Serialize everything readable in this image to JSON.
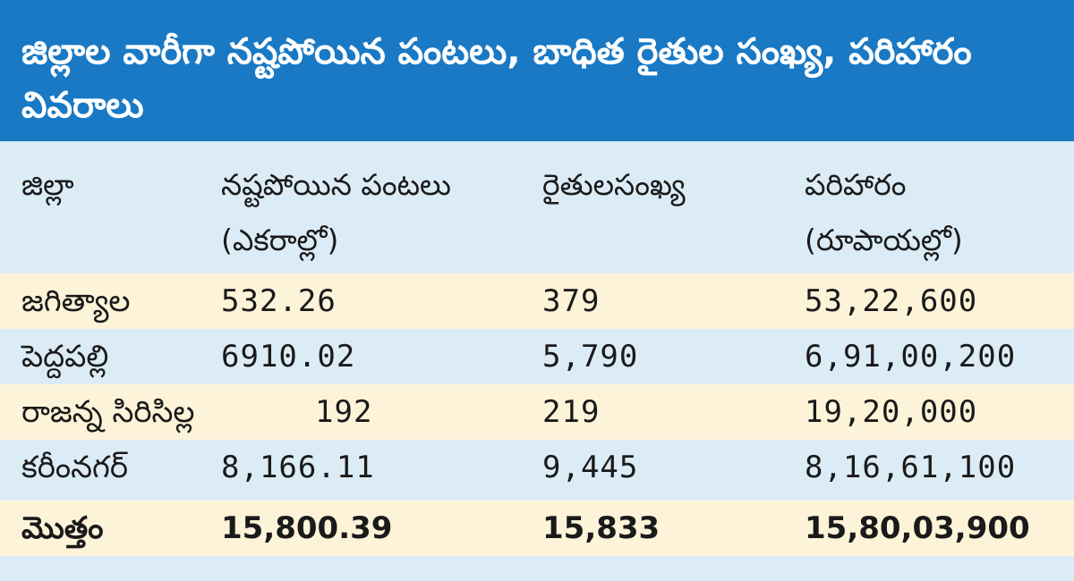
{
  "title": "జిల్లాల వారీగా నష్టపోయిన పంటలు, బాధిత రైతుల సంఖ్య, పరిహారం వివరాలు",
  "headers": {
    "district": "జిల్లా",
    "crops_lost": "నష్టపోయిన పంటలు",
    "crops_lost_unit": "(ఎకరాల్లో)",
    "farmers": "రైతులసంఖ్య",
    "compensation": "పరిహారం",
    "compensation_unit": "(రూపాయల్లో)"
  },
  "rows": [
    {
      "district": "జగిత్యాల",
      "crops_lost": "532.26",
      "farmers": "379",
      "compensation": "53,22,600"
    },
    {
      "district": "పెద్దపల్లి",
      "crops_lost": "6910.02",
      "farmers": "5,790",
      "compensation": "6,91,00,200"
    },
    {
      "district": "రాజన్న సిరిసిల్ల",
      "crops_lost": "192",
      "farmers": "219",
      "compensation": "19,20,000"
    },
    {
      "district": "కరీంనగర్",
      "crops_lost": "8,166.11",
      "farmers": "9,445",
      "compensation": "8,16,61,100"
    }
  ],
  "total": {
    "district": "మొత్తం",
    "crops_lost": "15,800.39",
    "farmers": "15,833",
    "compensation": "15,80,03,900"
  },
  "colors": {
    "title_bg": "#1979c4",
    "row_blue": "#dcecf7",
    "row_cream": "#fdf3d9"
  }
}
